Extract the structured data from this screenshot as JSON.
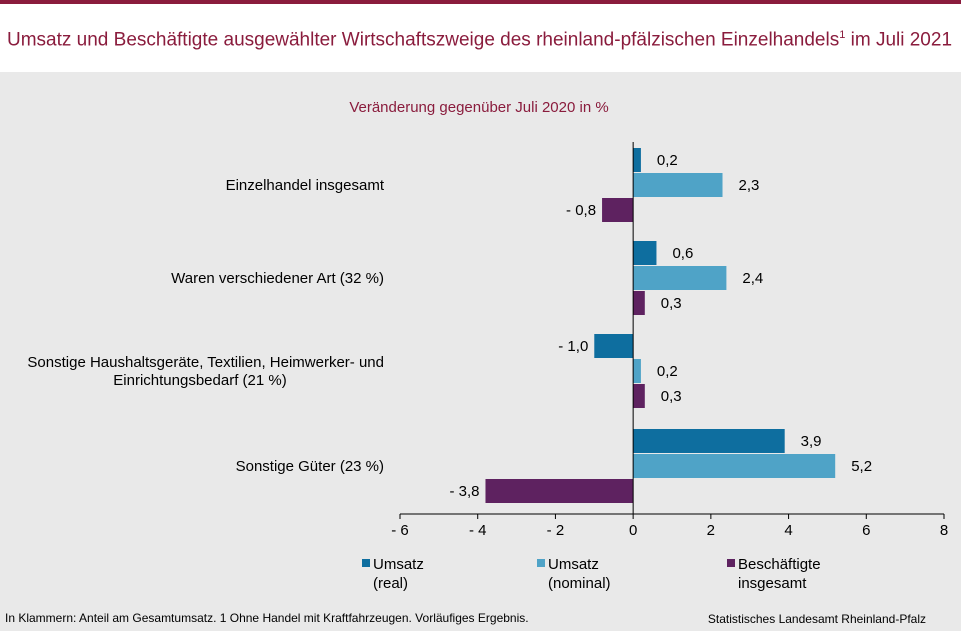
{
  "title": "Umsatz und Beschäftigte ausgewählter Wirtschaftszweige des rheinland-pfälzischen Einzelhandels",
  "title_sup": "1",
  "title_suffix": " im Juli 2021",
  "footnote": "In Klammern: Anteil am Gesamtumsatz. 1 Ohne Handel mit Kraftfahrzeugen. Vorläufiges Ergebnis.",
  "source": "Statistisches Landesamt Rheinland-Pfalz",
  "colors": {
    "accent": "#8a1c3d",
    "background": "#e9e9e9",
    "umsatz_real": "#0e6e9f",
    "umsatz_nominal": "#4fa3c7",
    "beschaeftigte": "#5e2260"
  },
  "chart_data": {
    "type": "bar",
    "orientation": "horizontal",
    "subtitle": "Veränderung gegenüber Juli 2020 in %",
    "categories": [
      [
        "Einzelhandel insgesamt"
      ],
      [
        "Waren verschiedener Art (32 %)"
      ],
      [
        "Sonstige Haushaltsgeräte, Textilien, Heimwerker- und",
        "Einrichtungsbedarf (21 %)"
      ],
      [
        "Sonstige Güter (23 %)"
      ]
    ],
    "series": [
      {
        "name": [
          "Umsatz",
          "(real)"
        ],
        "color": "#0e6e9f",
        "values": [
          0.2,
          0.6,
          -1.0,
          3.9
        ],
        "labels": [
          "0,2",
          "0,6",
          "- 1,0",
          "3,9"
        ]
      },
      {
        "name": [
          "Umsatz",
          "(nominal)"
        ],
        "color": "#4fa3c7",
        "values": [
          2.3,
          2.4,
          0.2,
          5.2
        ],
        "labels": [
          "2,3",
          "2,4",
          "0,2",
          "5,2"
        ]
      },
      {
        "name": [
          "Beschäftigte",
          "insgesamt"
        ],
        "color": "#5e2260",
        "values": [
          -0.8,
          0.3,
          0.3,
          -3.8
        ],
        "labels": [
          "- 0,8",
          "0,3",
          "0,3",
          "- 3,8"
        ]
      }
    ],
    "xlim": [
      -6,
      8
    ],
    "ticks": [
      -6,
      -4,
      -2,
      0,
      2,
      4,
      6,
      8
    ],
    "tick_labels": [
      "- 6",
      "- 4",
      "- 2",
      "0",
      "2",
      "4",
      "6",
      "8"
    ],
    "legend": "bottom",
    "grid": false
  }
}
